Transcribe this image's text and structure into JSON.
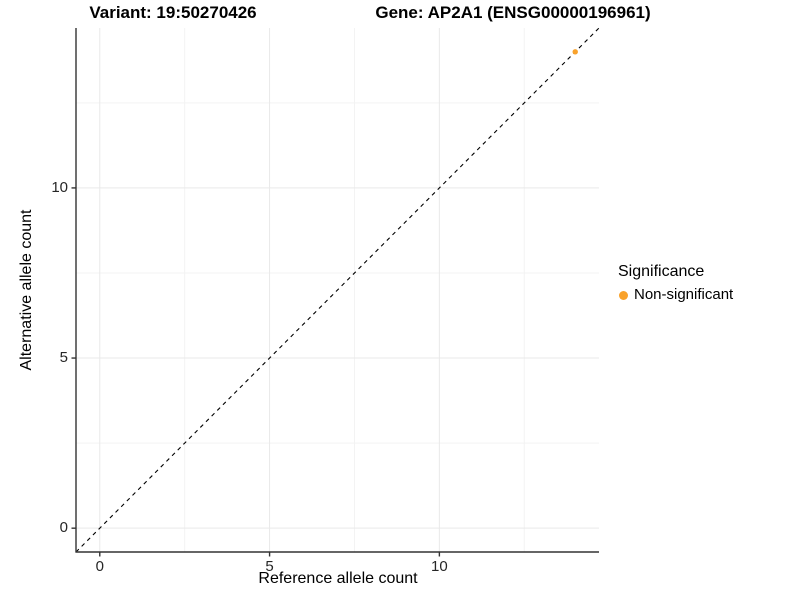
{
  "titles": {
    "variant": "Variant: 19:50270426",
    "gene": "Gene: AP2A1 (ENSG00000196961)"
  },
  "chart_data": {
    "type": "scatter",
    "title": "Variant: 19:50270426   Gene: AP2A1 (ENSG00000196961)",
    "xlabel": "Reference allele count",
    "ylabel": "Alternative allele count",
    "xlim": [
      -0.7,
      14.7
    ],
    "ylim": [
      -0.7,
      14.7
    ],
    "x_ticks": [
      0,
      5,
      10
    ],
    "y_ticks": [
      0,
      5,
      10
    ],
    "x_minor_ticks": [
      2.5,
      7.5,
      12.5
    ],
    "y_minor_ticks": [
      2.5,
      7.5,
      12.5
    ],
    "grid": "major and minor gridlines, light gray, white panel",
    "series": [
      {
        "name": "Non-significant",
        "color": "#F9A22B",
        "points": [
          {
            "x": 14,
            "y": 14
          }
        ]
      }
    ],
    "reference_line": {
      "kind": "identity",
      "equation": "y = x",
      "style": "dashed",
      "color": "#000000"
    },
    "legend": {
      "title": "Significance",
      "position": "right",
      "entries": [
        {
          "label": "Non-significant",
          "color": "#F9A22B"
        }
      ]
    }
  },
  "style": {
    "background_color": "#FFFFFF",
    "point_color": "#F9A22B",
    "grid_major_color": "#E9E9E9",
    "grid_minor_color": "#F3F3F3",
    "axis_line_color": "#333333",
    "title_color": "#000000",
    "tick_label_color": "#262626"
  }
}
